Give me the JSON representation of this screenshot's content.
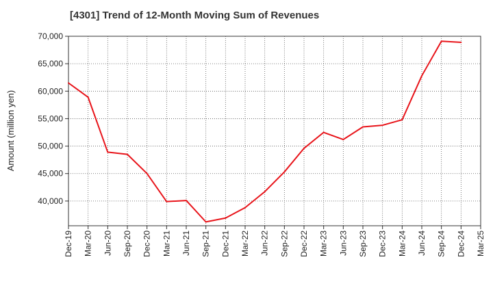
{
  "chart_data": {
    "type": "line",
    "title": "[4301]  Trend of 12-Month Moving Sum of Revenues",
    "xlabel": "",
    "ylabel": "Amount (million yen)",
    "ylim": [
      35500,
      70000
    ],
    "y_ticks": [
      40000,
      45000,
      50000,
      55000,
      60000,
      65000,
      70000
    ],
    "y_tick_labels": [
      "40,000",
      "45,000",
      "50,000",
      "55,000",
      "60,000",
      "65,000",
      "70,000"
    ],
    "x_tick_labels": [
      "Dec-19",
      "Mar-20",
      "Jun-20",
      "Sep-20",
      "Dec-20",
      "Mar-21",
      "Jun-21",
      "Sep-21",
      "Dec-21",
      "Mar-22",
      "Jun-22",
      "Sep-22",
      "Dec-22",
      "Mar-23",
      "Jun-23",
      "Sep-23",
      "Dec-23",
      "Mar-24",
      "Jun-24",
      "Sep-24",
      "Dec-24",
      "Mar-25"
    ],
    "grid": true,
    "series": [
      {
        "color": "#e8141a",
        "x": [
          "Dec-19",
          "Mar-20",
          "Jun-20",
          "Sep-20",
          "Dec-20",
          "Mar-21",
          "Jun-21",
          "Sep-21",
          "Dec-21",
          "Mar-22",
          "Jun-22",
          "Sep-22",
          "Dec-22",
          "Mar-23",
          "Jun-23",
          "Sep-23",
          "Dec-23",
          "Mar-24",
          "Jun-24",
          "Sep-24",
          "Dec-24"
        ],
        "values": [
          61500,
          58900,
          48900,
          48500,
          45000,
          39900,
          40100,
          36200,
          36900,
          38800,
          41700,
          45300,
          49600,
          52500,
          51200,
          53500,
          53800,
          54800,
          62800,
          69100,
          68900
        ]
      }
    ]
  }
}
